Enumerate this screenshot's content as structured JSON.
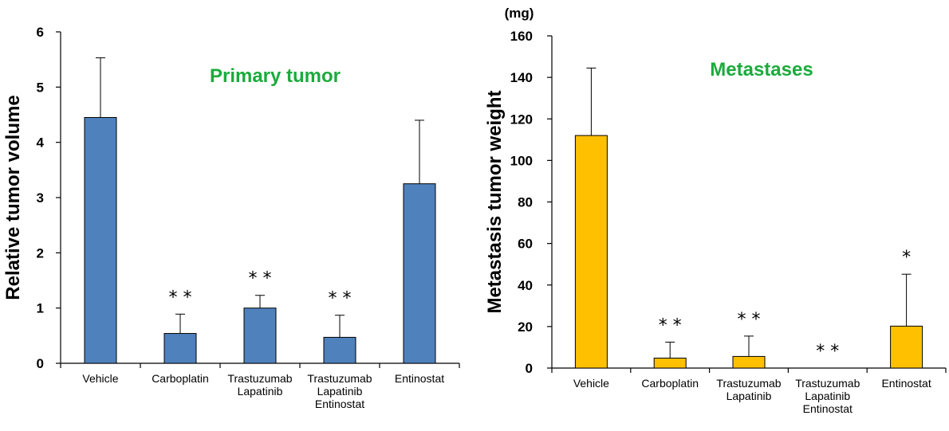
{
  "chart_data": [
    {
      "type": "bar",
      "title": "Primary tumor",
      "ylabel": "Relative tumor volume",
      "xlabel": "",
      "unit": "",
      "ylim": [
        0,
        6
      ],
      "yticks": [
        "0",
        "1",
        "2",
        "3",
        "4",
        "5",
        "6"
      ],
      "categories": [
        [
          "Vehicle"
        ],
        [
          "Carboplatin"
        ],
        [
          "Trastuzumab",
          "Lapatinib"
        ],
        [
          "Trastuzumab",
          "Lapatinib",
          "Entinostat"
        ],
        [
          "Entinostat"
        ]
      ],
      "values": [
        4.45,
        0.54,
        1.0,
        0.47,
        3.25
      ],
      "errors": [
        1.08,
        0.35,
        0.23,
        0.4,
        1.15
      ],
      "significance": [
        "",
        "* *",
        "* *",
        "* *",
        ""
      ],
      "bar_color": "#4f81bd",
      "title_color": "#1aab3c",
      "grid": false
    },
    {
      "type": "bar",
      "title": "Metastases",
      "ylabel": "Metastasis tumor weight",
      "xlabel": "",
      "unit": "(mg)",
      "ylim": [
        0,
        160
      ],
      "yticks": [
        "0",
        "20",
        "40",
        "60",
        "80",
        "100",
        "120",
        "140",
        "160"
      ],
      "categories": [
        [
          "Vehicle"
        ],
        [
          "Carboplatin"
        ],
        [
          "Trastuzumab",
          "Lapatinib"
        ],
        [
          "Trastuzumab",
          "Lapatinib",
          "Entinostat"
        ],
        [
          "Entinostat"
        ]
      ],
      "values": [
        112,
        4.8,
        5.6,
        0,
        20.2
      ],
      "errors": [
        32.5,
        7.7,
        9.8,
        0,
        25
      ],
      "significance": [
        "",
        "* *",
        "* *",
        "* *",
        "*"
      ],
      "bar_color": "#ffc000",
      "title_color": "#1aab3c",
      "grid": false
    }
  ]
}
